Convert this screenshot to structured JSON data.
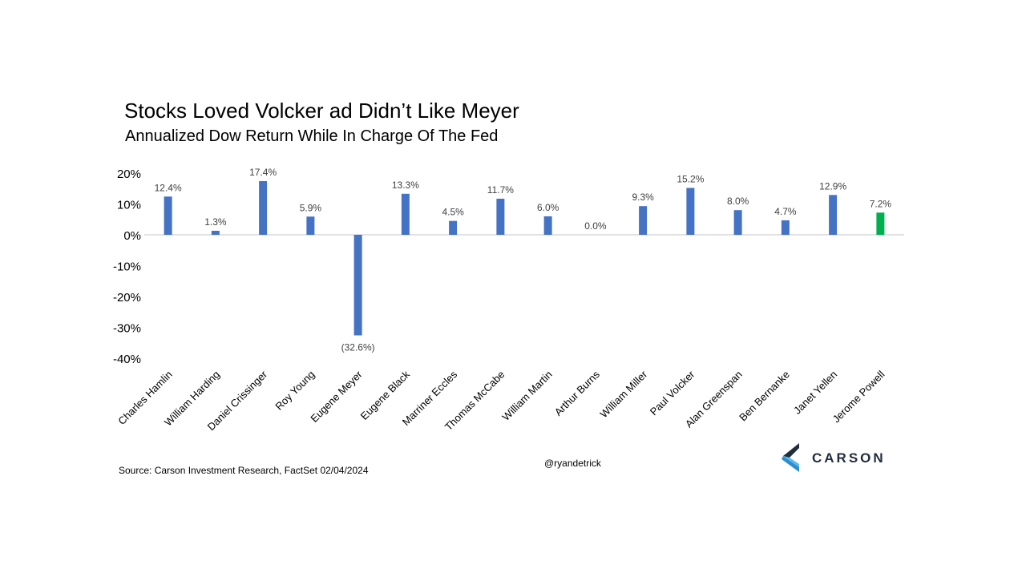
{
  "title": "Stocks Loved Volcker ad Didn’t Like Meyer",
  "subtitle": "Annualized Dow Return While In Charge Of The Fed",
  "source": "Source: Carson Investment Research, FactSet 02/04/2024",
  "handle": "@ryandetrick",
  "logo": {
    "text": "CARSON",
    "icon": "carson-chevron-logo-icon"
  },
  "colors": {
    "bar": "#4472c4",
    "highlight": "#00b050",
    "axis": "#d9d9d9"
  },
  "chart_data": {
    "type": "bar",
    "categories": [
      "Charles Hamlin",
      "William Harding",
      "Daniel Crissinger",
      "Roy Young",
      "Eugene Meyer",
      "Eugene Black",
      "Marriner Eccles",
      "Thomas McCabe",
      "William Martin",
      "Arthur Burns",
      "William Miller",
      "Paul Volcker",
      "Alan Greenspan",
      "Ben Bernanke",
      "Janet Yellen",
      "Jerome Powell"
    ],
    "values": [
      12.4,
      1.3,
      17.4,
      5.9,
      -32.6,
      13.3,
      4.5,
      11.7,
      6.0,
      0.0,
      9.3,
      15.2,
      8.0,
      4.7,
      12.9,
      7.2
    ],
    "labels": [
      "12.4%",
      "1.3%",
      "17.4%",
      "5.9%",
      "(32.6%)",
      "13.3%",
      "4.5%",
      "11.7%",
      "6.0%",
      "0.0%",
      "9.3%",
      "15.2%",
      "8.0%",
      "4.7%",
      "12.9%",
      "7.2%"
    ],
    "highlight_category": "Jerome Powell",
    "yticks": [
      "20%",
      "10%",
      "0%",
      "-10%",
      "-20%",
      "-30%",
      "-40%"
    ],
    "ytick_values": [
      20,
      10,
      0,
      -10,
      -20,
      -30,
      -40
    ],
    "ylim": [
      -40,
      20
    ],
    "xlabel": "",
    "ylabel": "",
    "grid": false,
    "legend": "none"
  }
}
